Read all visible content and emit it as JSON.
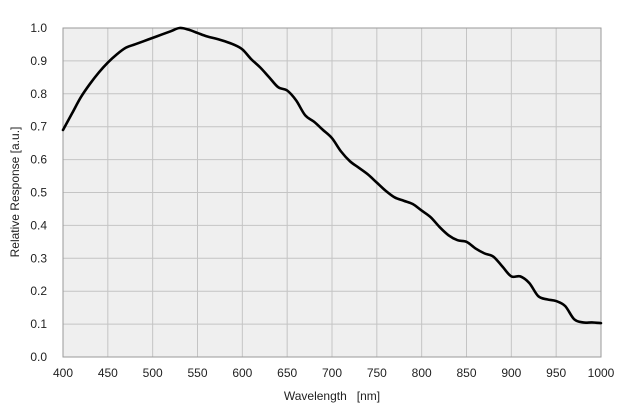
{
  "chart_data": {
    "type": "line",
    "xlabel": "Wavelength   [nm]",
    "ylabel": "Relative Response [a.u.]",
    "xlim": [
      400,
      1000
    ],
    "ylim": [
      0.0,
      1.0
    ],
    "x_ticks": [
      400,
      450,
      500,
      550,
      600,
      650,
      700,
      750,
      800,
      850,
      900,
      950,
      1000
    ],
    "x_tick_labels": [
      "400",
      "450",
      "500",
      "550",
      "600",
      "650",
      "700",
      "750",
      "800",
      "850",
      "900",
      "950",
      "1000"
    ],
    "y_ticks": [
      0.0,
      0.1,
      0.2,
      0.3,
      0.4,
      0.5,
      0.6,
      0.7,
      0.8,
      0.9,
      1.0
    ],
    "y_tick_labels": [
      "0.0",
      "0.1",
      "0.2",
      "0.3",
      "0.4",
      "0.5",
      "0.6",
      "0.7",
      "0.8",
      "0.9",
      "1.0"
    ],
    "grid": true,
    "legend": "none",
    "series": [
      {
        "color": "#000000",
        "x": [
          400,
          410,
          420,
          430,
          440,
          450,
          460,
          470,
          480,
          490,
          500,
          510,
          520,
          530,
          540,
          550,
          560,
          570,
          580,
          590,
          600,
          610,
          620,
          630,
          640,
          650,
          660,
          670,
          680,
          690,
          700,
          710,
          720,
          730,
          740,
          750,
          760,
          770,
          780,
          790,
          800,
          810,
          820,
          830,
          840,
          850,
          860,
          870,
          880,
          890,
          900,
          910,
          920,
          930,
          940,
          950,
          960,
          970,
          980,
          990,
          1000
        ],
        "y": [
          0.69,
          0.74,
          0.79,
          0.83,
          0.865,
          0.895,
          0.92,
          0.94,
          0.95,
          0.96,
          0.97,
          0.98,
          0.99,
          1.0,
          0.995,
          0.985,
          0.975,
          0.968,
          0.96,
          0.95,
          0.935,
          0.905,
          0.88,
          0.85,
          0.82,
          0.81,
          0.78,
          0.735,
          0.715,
          0.69,
          0.665,
          0.625,
          0.595,
          0.575,
          0.555,
          0.53,
          0.505,
          0.485,
          0.475,
          0.465,
          0.445,
          0.425,
          0.395,
          0.37,
          0.355,
          0.35,
          0.33,
          0.315,
          0.305,
          0.275,
          0.245,
          0.245,
          0.225,
          0.185,
          0.175,
          0.17,
          0.155,
          0.115,
          0.105,
          0.105,
          0.103
        ]
      }
    ]
  }
}
